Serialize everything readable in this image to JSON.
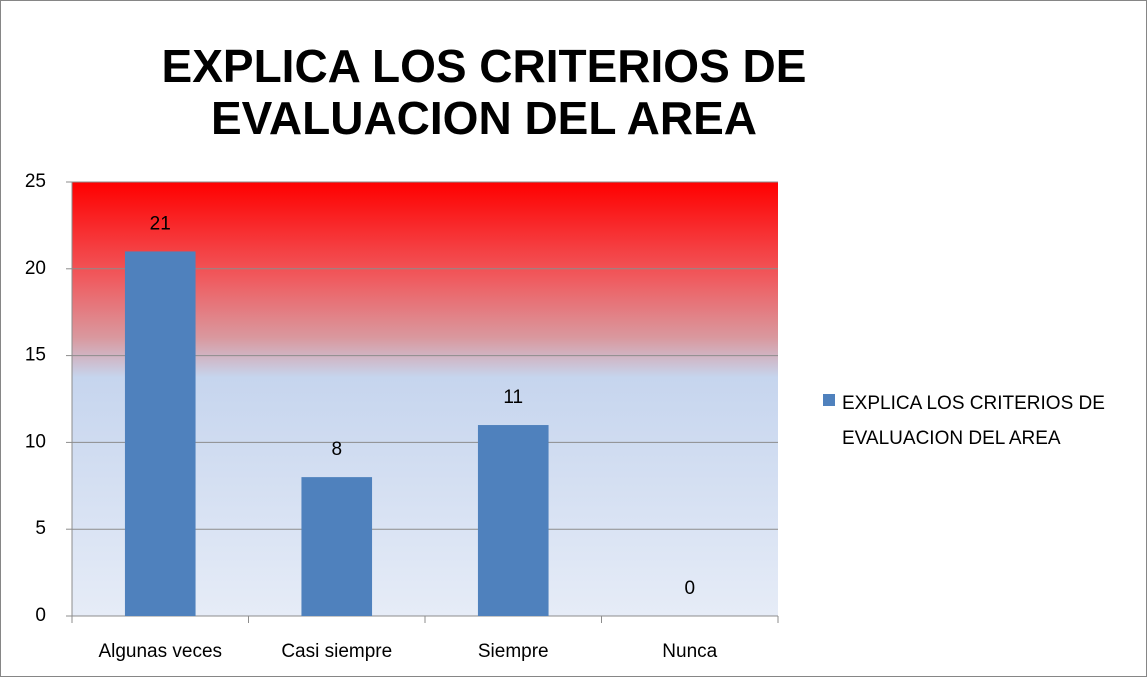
{
  "chart_data": {
    "type": "bar",
    "title": "EXPLICA LOS CRITERIOS DE EVALUACION DEL AREA",
    "categories": [
      "Algunas veces",
      "Casi siempre",
      "Siempre",
      "Nunca"
    ],
    "series": [
      {
        "name": "EXPLICA LOS CRITERIOS DE EVALUACION DEL AREA",
        "color": "#4f81bd",
        "values": [
          21,
          8,
          11,
          0
        ]
      }
    ],
    "ylim": [
      0,
      25
    ],
    "yticks": [
      0,
      5,
      10,
      15,
      20,
      25
    ],
    "grid": true,
    "legend": "right"
  }
}
